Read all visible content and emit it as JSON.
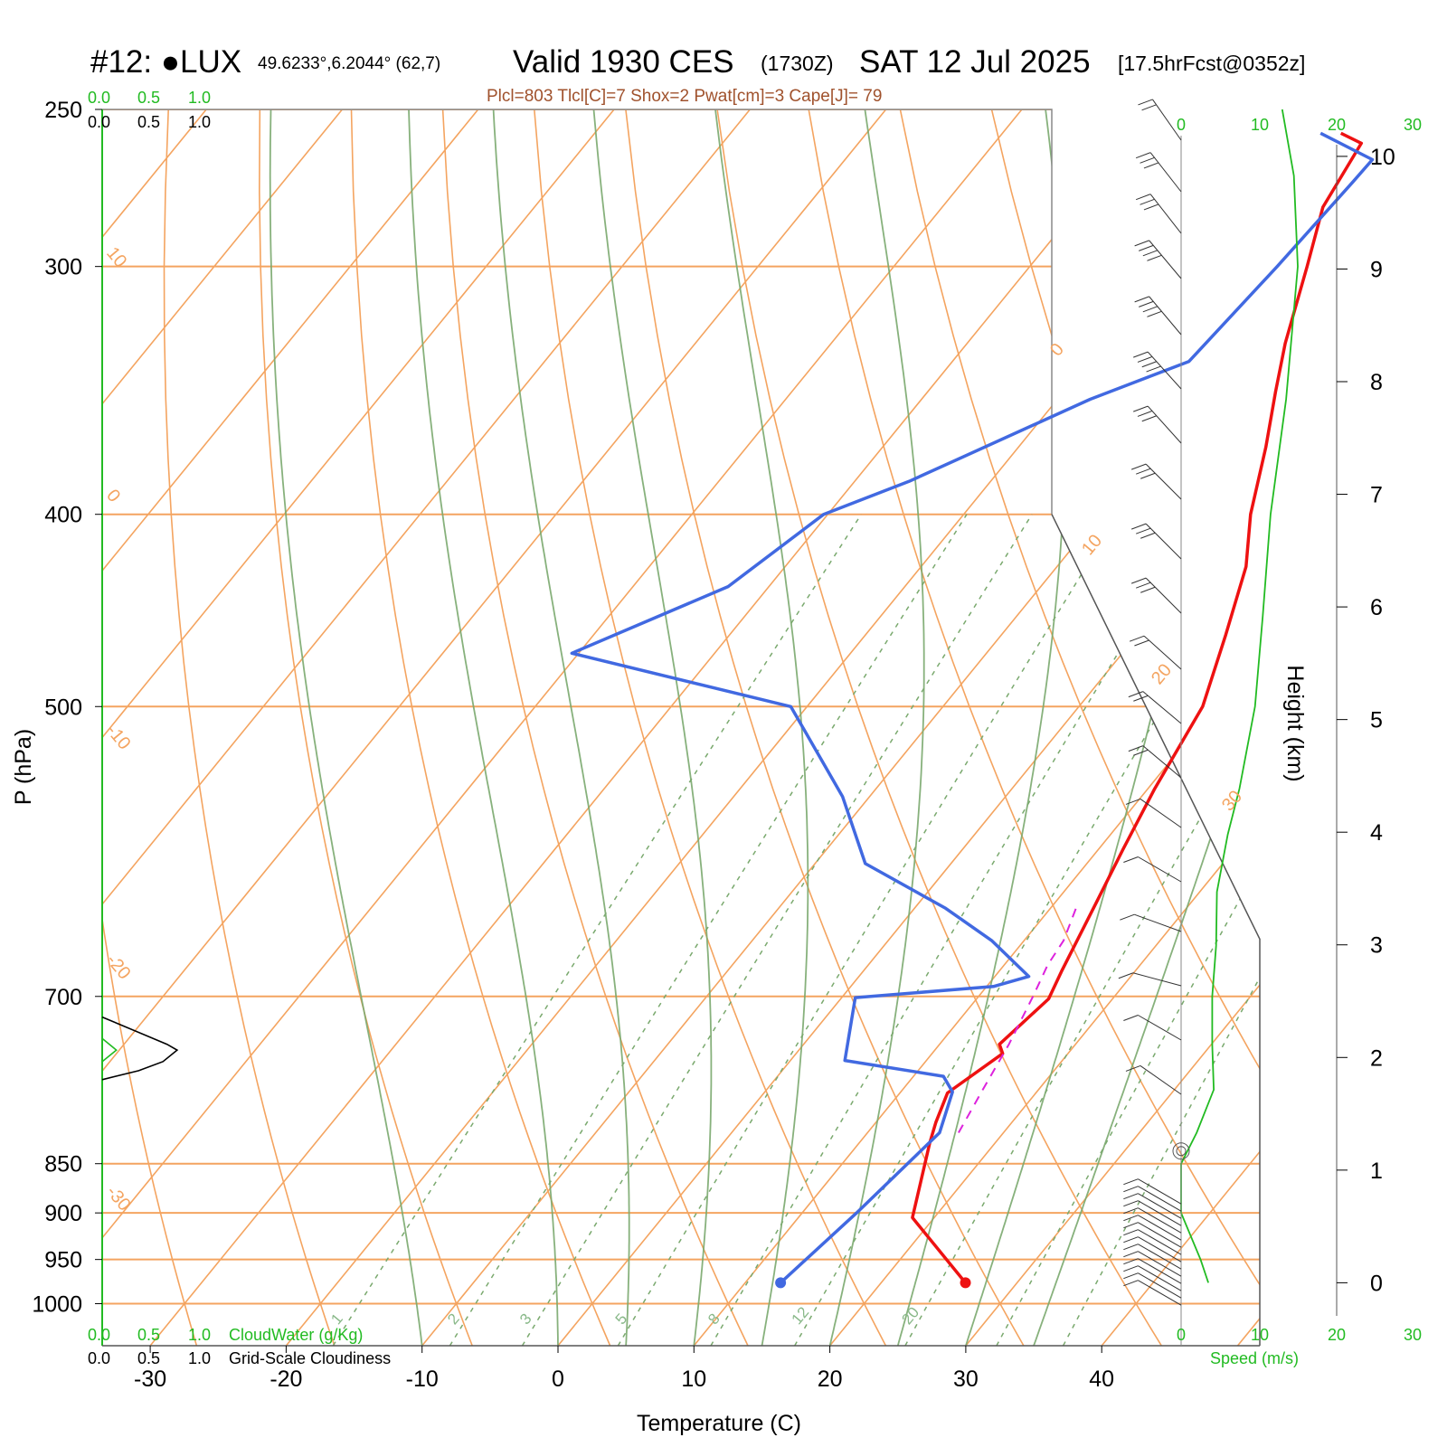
{
  "header": {
    "station": "#12: ●LUX",
    "coords": "49.6233°,6.2044° (62,7)",
    "valid": "Valid 1930 CES",
    "zulu": "(1730Z)",
    "date": "SAT 12 Jul 2025",
    "forecast": "[17.5hrFcst@0352z]",
    "diagnostics": "Plcl=803 Tlcl[C]=7 Shox=2 Pwat[cm]=3 Cape[J]= 79"
  },
  "scales": {
    "cloudwater_ticks": [
      "0.0",
      "0.5",
      "1.0"
    ],
    "cloudiness_ticks": [
      "0.0",
      "0.5",
      "1.0"
    ],
    "cloudwater_label": "CloudWater (g/Kg)",
    "cloudiness_label": "Grid-Scale Cloudiness",
    "speed_ticks": [
      "0",
      "10",
      "20",
      "30"
    ],
    "speed_label": "Speed (m/s)"
  },
  "chart_data": {
    "type": "line",
    "subtype": "skew-T log-p sounding",
    "xlabel": "Temperature (C)",
    "ylabel": "P (hPa)",
    "y2label": "Height (km)",
    "x_ticks": [
      -30,
      -20,
      -10,
      0,
      10,
      20,
      30,
      40
    ],
    "pressure_ticks": [
      250,
      300,
      400,
      500,
      700,
      850,
      900,
      950,
      1000
    ],
    "height_ticks": [
      0,
      1,
      2,
      3,
      4,
      5,
      6,
      7,
      8,
      9,
      10
    ],
    "isotherm_labels": [
      "10",
      "0",
      "-10",
      "-20",
      "-30",
      "0",
      "10",
      "20",
      "30"
    ],
    "mixing_ratio_labels": [
      "1",
      "2",
      "3",
      "5",
      "8",
      "12",
      "20"
    ],
    "series": [
      {
        "name": "temperature",
        "color": "#ee1111",
        "points": [
          [
            26.2,
            976
          ],
          [
            18.4,
            905
          ],
          [
            15.2,
            830
          ],
          [
            14.4,
            810
          ],
          [
            13.5,
            783
          ],
          [
            15.2,
            748
          ],
          [
            14.4,
            740
          ],
          [
            15.3,
            702
          ],
          [
            14.6,
            680
          ],
          [
            13.1,
            630
          ],
          [
            11.8,
            590
          ],
          [
            10.5,
            550
          ],
          [
            9.1,
            500
          ],
          [
            6.5,
            460
          ],
          [
            3.9,
            425
          ],
          [
            1.1,
            400
          ],
          [
            -1.8,
            370
          ],
          [
            -4.4,
            347
          ],
          [
            -6.6,
            328
          ],
          [
            -9.6,
            300
          ],
          [
            -12.0,
            280
          ],
          [
            -13.0,
            260
          ],
          [
            -15.1,
            257
          ]
        ]
      },
      {
        "name": "dewpoint",
        "color": "#4169e1",
        "points": [
          [
            12.6,
            976
          ],
          [
            14.0,
            900
          ],
          [
            15.3,
            820
          ],
          [
            13.8,
            782
          ],
          [
            12.2,
            768
          ],
          [
            4.0,
            754
          ],
          [
            1.0,
            701
          ],
          [
            10.5,
            692
          ],
          [
            12.5,
            684
          ],
          [
            7.6,
            656
          ],
          [
            2.3,
            632
          ],
          [
            -6.3,
            600
          ],
          [
            -12.0,
            555
          ],
          [
            -21.2,
            500
          ],
          [
            -40.5,
            470
          ],
          [
            -33.0,
            435
          ],
          [
            -30.3,
            400
          ],
          [
            -26.0,
            385
          ],
          [
            -17.6,
            350
          ],
          [
            -12.6,
            335
          ],
          [
            -11.8,
            300
          ],
          [
            -11.3,
            272
          ],
          [
            -11.2,
            265
          ],
          [
            -16.6,
            257
          ]
        ]
      },
      {
        "name": "parcel",
        "color": "#dd22dd",
        "points": [
          [
            16.7,
            820
          ],
          [
            15.9,
            780
          ],
          [
            15.1,
            740
          ],
          [
            14.0,
            700
          ],
          [
            13.2,
            675
          ],
          [
            12.9,
            656
          ],
          [
            11.8,
            630
          ]
        ]
      }
    ],
    "surface_temperature": 26.2,
    "surface_dewpoint": 12.6,
    "surface_pressure": 976,
    "wind_speed_profile_ms": [
      [
        976,
        3.5
      ],
      [
        950,
        2.5
      ],
      [
        900,
        0
      ],
      [
        850,
        0
      ],
      [
        820,
        2
      ],
      [
        780,
        4.2
      ],
      [
        740,
        4
      ],
      [
        700,
        4
      ],
      [
        660,
        4.5
      ],
      [
        620,
        4.6
      ],
      [
        580,
        6
      ],
      [
        550,
        7.5
      ],
      [
        500,
        9.5
      ],
      [
        450,
        10.5
      ],
      [
        400,
        11.5
      ],
      [
        350,
        13.5
      ],
      [
        300,
        15
      ],
      [
        270,
        14.5
      ],
      [
        250,
        13
      ]
    ],
    "cloud_water_max_gkg": 0,
    "cloudiness_max": 0.37,
    "cloudiness_layer_hpa": [
      723,
      767
    ]
  }
}
